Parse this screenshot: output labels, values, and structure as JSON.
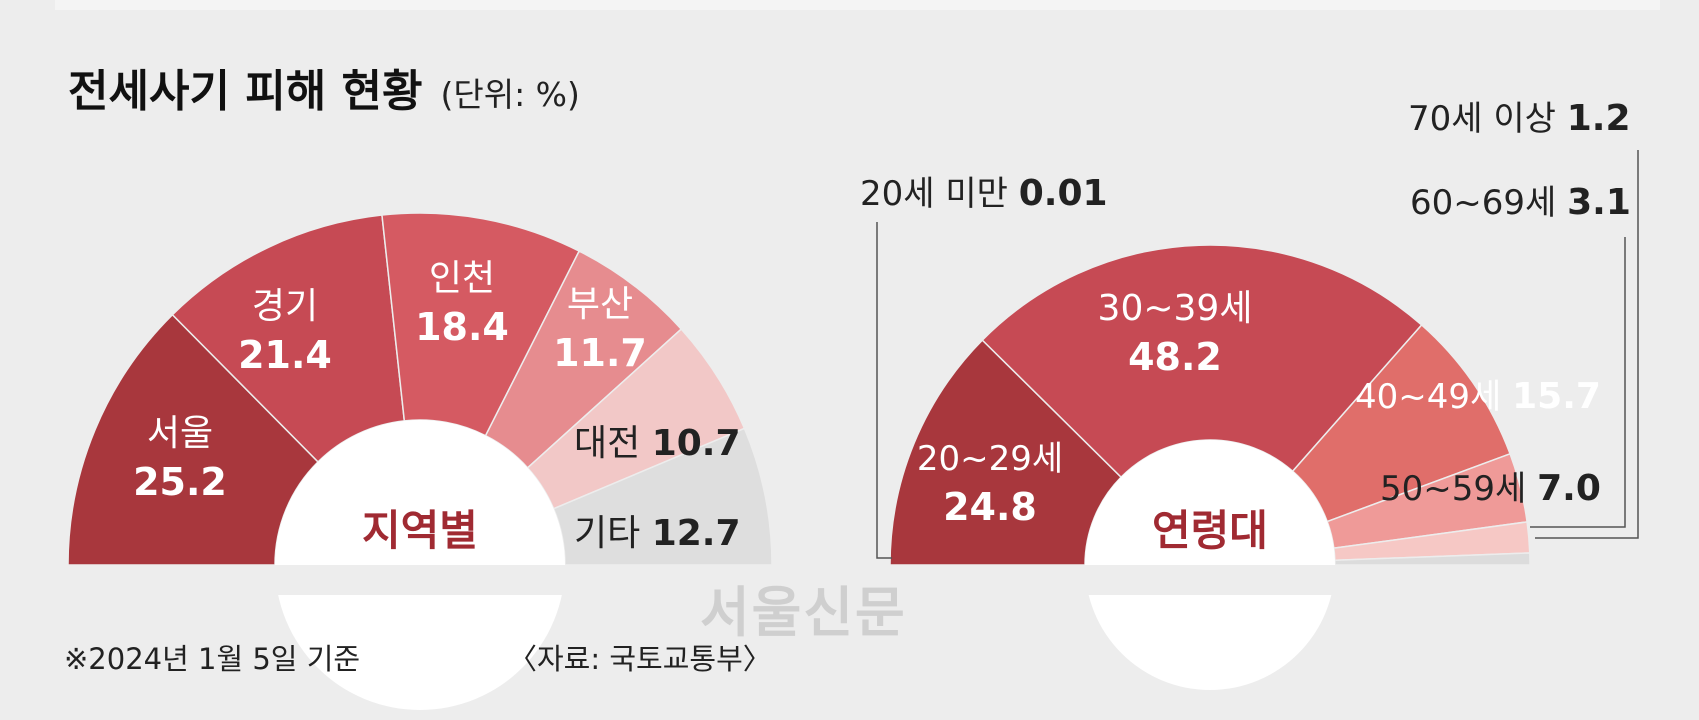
{
  "title": "전세사기 피해 현황",
  "unit": "(단위: %)",
  "footnote": "※2024년 1월 5일 기준",
  "source": "〈자료: 국토교통부〉",
  "watermark": "서울신문",
  "chart_data": [
    {
      "type": "pie",
      "center_label": "지역별",
      "categories": [
        "서울",
        "경기",
        "인천",
        "부산",
        "대전",
        "기타"
      ],
      "values": [
        25.2,
        21.4,
        18.4,
        11.7,
        10.7,
        12.7
      ],
      "labels": [
        "25.2",
        "21.4",
        "18.4",
        "11.7",
        "10.7",
        "12.7"
      ],
      "colors": [
        "#a8373d",
        "#c64a54",
        "#d55a62",
        "#e68c8f",
        "#f2c8c7",
        "#dedede"
      ]
    },
    {
      "type": "pie",
      "center_label": "연령대",
      "categories": [
        "20세 미만",
        "20~29세",
        "30~39세",
        "40~49세",
        "50~59세",
        "60~69세",
        "70세 이상"
      ],
      "values": [
        0.01,
        24.8,
        48.2,
        15.7,
        7.0,
        3.1,
        1.2
      ],
      "labels": [
        "0.01",
        "24.8",
        "48.2",
        "15.7",
        "7.0",
        "3.1",
        "1.2"
      ],
      "colors": [
        "#9e3037",
        "#a8373d",
        "#c64a54",
        "#e06e6a",
        "#ef9a98",
        "#f6c8c5",
        "#dcdcdc"
      ]
    }
  ]
}
